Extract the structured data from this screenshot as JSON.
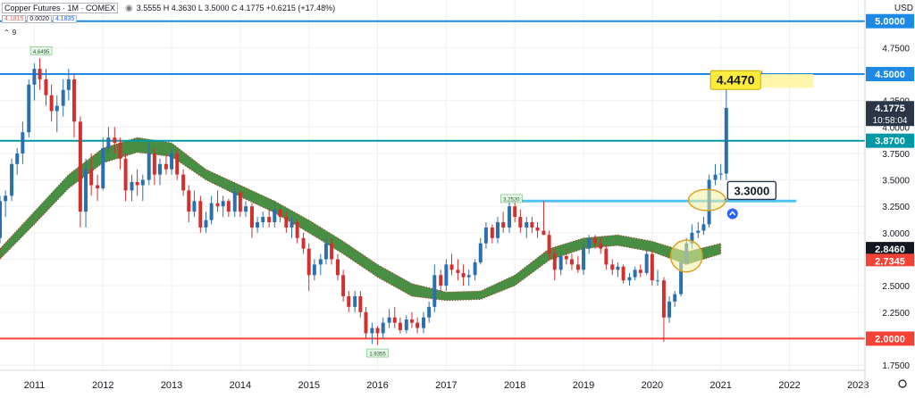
{
  "header": {
    "symbol": "Copper Futures · 1M · COMEX",
    "ohlc": "3.5555 H 4.3630 L 3.5000 C 4.1775 +0.6215 (+17.48%)",
    "bid": "4.1815",
    "spread": "0.0020",
    "ask": "4.1835",
    "indicator_toggle": "⌃",
    "indicator_value": "9"
  },
  "axis": {
    "currency": "USD",
    "y_ticks": [
      "1.7500",
      "2.0000",
      "2.2500",
      "2.5000",
      "2.7500",
      "3.0000",
      "3.2500",
      "3.5000",
      "3.7500",
      "4.0000",
      "4.2500",
      "4.5000",
      "4.7500",
      "5.0000"
    ],
    "x_ticks": [
      "2011",
      "2012",
      "2013",
      "2014",
      "2015",
      "2016",
      "2017",
      "2018",
      "2019",
      "2020",
      "2021",
      "2022",
      "2023"
    ]
  },
  "colors": {
    "up": "#2a6fb0",
    "down": "#d32f2f",
    "line_blue": "#1e88e5",
    "line_teal": "#0097a7",
    "line_red": "#f44336",
    "line_support": "#4fc3f7",
    "band_fill": "#3f8a3a",
    "band_edge": "#b71c1c",
    "ellipse_fill": "#f0f0a0",
    "ellipse_edge": "#e0a020",
    "target_box": "#fff59d",
    "badge_yellow": "#ffeb3b",
    "current_tag": "#2a3548",
    "black_tag": "#131722",
    "red_tag": "#f44336"
  },
  "chart_data": {
    "type": "candlestick",
    "title": "Copper Futures",
    "timeframe": "1M",
    "exchange": "COMEX",
    "ylim": [
      1.7,
      5.2
    ],
    "xlim": [
      2010.5,
      2023.1
    ],
    "horizontal_lines": [
      {
        "value": 5.0,
        "label": "5.0000",
        "color": "line_blue"
      },
      {
        "value": 4.5,
        "label": "4.5000",
        "color": "line_blue"
      },
      {
        "value": 3.87,
        "label": "3.8700",
        "color": "line_teal"
      },
      {
        "value": 2.0,
        "label": "2.0000",
        "color": "line_red"
      }
    ],
    "support_line": {
      "value": 3.3,
      "x_from": 2018.0,
      "x_to": 2022.1
    },
    "price_tags": [
      {
        "value": 4.1775,
        "label": "4.1775",
        "sublabel": "10:58:04",
        "color": "current_tag"
      },
      {
        "value": 2.846,
        "label": "2.8460",
        "color": "black_tag"
      },
      {
        "value": 2.7345,
        "label": "2.7345",
        "color": "red_tag"
      }
    ],
    "annotations": [
      {
        "x": 2011.1,
        "y": 4.6495,
        "text": "4.6495",
        "pos": "above"
      },
      {
        "x": 2017.95,
        "y": 3.252,
        "text": "3.2520",
        "pos": "above"
      },
      {
        "x": 2016.0,
        "y": 1.9355,
        "text": "1.9355",
        "pos": "below"
      }
    ],
    "callouts": [
      {
        "text": "4.4470",
        "x": 2020.85,
        "y": 4.447,
        "style": "yellow"
      },
      {
        "text": "3.3000",
        "x": 2021.1,
        "y": 3.4,
        "style": "white"
      }
    ],
    "target_zone": {
      "x_from": 2020.85,
      "x_to": 2022.35,
      "y_from": 4.37,
      "y_to": 4.5
    },
    "ellipses": [
      {
        "cx": 2020.8,
        "cy": 3.31,
        "rx": 0.27,
        "ry": 0.1
      },
      {
        "cx": 2020.5,
        "cy": 2.78,
        "rx": 0.23,
        "ry": 0.15
      }
    ],
    "band": {
      "name": "Moving-average ribbon",
      "x": [
        2010.5,
        2011.0,
        2011.5,
        2012.0,
        2012.5,
        2013.0,
        2013.5,
        2014.0,
        2014.5,
        2015.0,
        2015.5,
        2016.0,
        2016.5,
        2017.0,
        2017.5,
        2018.0,
        2018.5,
        2019.0,
        2019.5,
        2020.0,
        2020.5,
        2021.0
      ],
      "upper": [
        2.85,
        3.2,
        3.55,
        3.8,
        3.9,
        3.85,
        3.6,
        3.45,
        3.3,
        3.12,
        2.92,
        2.7,
        2.52,
        2.44,
        2.45,
        2.6,
        2.85,
        2.95,
        2.98,
        2.92,
        2.82,
        2.9
      ],
      "lower": [
        2.75,
        3.08,
        3.42,
        3.66,
        3.76,
        3.72,
        3.5,
        3.34,
        3.19,
        3.0,
        2.8,
        2.58,
        2.4,
        2.36,
        2.37,
        2.5,
        2.74,
        2.85,
        2.88,
        2.82,
        2.7,
        2.8
      ]
    },
    "candles": [
      {
        "t": 2010.5,
        "o": 2.95,
        "h": 3.35,
        "l": 2.9,
        "c": 3.3
      },
      {
        "t": 2010.58,
        "o": 3.3,
        "h": 3.4,
        "l": 3.15,
        "c": 3.35
      },
      {
        "t": 2010.67,
        "o": 3.35,
        "h": 3.7,
        "l": 3.3,
        "c": 3.65
      },
      {
        "t": 2010.75,
        "o": 3.65,
        "h": 3.8,
        "l": 3.55,
        "c": 3.75
      },
      {
        "t": 2010.83,
        "o": 3.75,
        "h": 4.05,
        "l": 3.65,
        "c": 3.95
      },
      {
        "t": 2010.92,
        "o": 3.95,
        "h": 4.45,
        "l": 3.9,
        "c": 4.4
      },
      {
        "t": 2011.0,
        "o": 4.4,
        "h": 4.6,
        "l": 4.25,
        "c": 4.55
      },
      {
        "t": 2011.08,
        "o": 4.55,
        "h": 4.65,
        "l": 4.35,
        "c": 4.45
      },
      {
        "t": 2011.17,
        "o": 4.45,
        "h": 4.55,
        "l": 4.2,
        "c": 4.3
      },
      {
        "t": 2011.25,
        "o": 4.3,
        "h": 4.4,
        "l": 4.05,
        "c": 4.15
      },
      {
        "t": 2011.33,
        "o": 4.15,
        "h": 4.3,
        "l": 3.95,
        "c": 4.2
      },
      {
        "t": 2011.42,
        "o": 4.2,
        "h": 4.45,
        "l": 4.1,
        "c": 4.35
      },
      {
        "t": 2011.5,
        "o": 4.35,
        "h": 4.55,
        "l": 4.25,
        "c": 4.45
      },
      {
        "t": 2011.58,
        "o": 4.45,
        "h": 4.5,
        "l": 3.9,
        "c": 4.05
      },
      {
        "t": 2011.67,
        "o": 4.05,
        "h": 4.1,
        "l": 3.05,
        "c": 3.2
      },
      {
        "t": 2011.75,
        "o": 3.2,
        "h": 3.7,
        "l": 3.05,
        "c": 3.6
      },
      {
        "t": 2011.83,
        "o": 3.6,
        "h": 3.75,
        "l": 3.35,
        "c": 3.45
      },
      {
        "t": 2011.92,
        "o": 3.45,
        "h": 3.55,
        "l": 3.3,
        "c": 3.42
      },
      {
        "t": 2012.0,
        "o": 3.42,
        "h": 3.9,
        "l": 3.4,
        "c": 3.8
      },
      {
        "t": 2012.08,
        "o": 3.8,
        "h": 4.0,
        "l": 3.75,
        "c": 3.9
      },
      {
        "t": 2012.17,
        "o": 3.9,
        "h": 4.0,
        "l": 3.75,
        "c": 3.85
      },
      {
        "t": 2012.25,
        "o": 3.85,
        "h": 3.9,
        "l": 3.6,
        "c": 3.7
      },
      {
        "t": 2012.33,
        "o": 3.7,
        "h": 3.75,
        "l": 3.3,
        "c": 3.4
      },
      {
        "t": 2012.42,
        "o": 3.4,
        "h": 3.55,
        "l": 3.3,
        "c": 3.48
      },
      {
        "t": 2012.5,
        "o": 3.48,
        "h": 3.6,
        "l": 3.35,
        "c": 3.45
      },
      {
        "t": 2012.58,
        "o": 3.45,
        "h": 3.55,
        "l": 3.3,
        "c": 3.5
      },
      {
        "t": 2012.67,
        "o": 3.5,
        "h": 3.85,
        "l": 3.45,
        "c": 3.75
      },
      {
        "t": 2012.75,
        "o": 3.75,
        "h": 3.8,
        "l": 3.45,
        "c": 3.55
      },
      {
        "t": 2012.83,
        "o": 3.55,
        "h": 3.7,
        "l": 3.45,
        "c": 3.65
      },
      {
        "t": 2012.92,
        "o": 3.65,
        "h": 3.75,
        "l": 3.55,
        "c": 3.6
      },
      {
        "t": 2013.0,
        "o": 3.6,
        "h": 3.8,
        "l": 3.55,
        "c": 3.75
      },
      {
        "t": 2013.08,
        "o": 3.75,
        "h": 3.78,
        "l": 3.5,
        "c": 3.55
      },
      {
        "t": 2013.17,
        "o": 3.55,
        "h": 3.6,
        "l": 3.35,
        "c": 3.4
      },
      {
        "t": 2013.25,
        "o": 3.4,
        "h": 3.45,
        "l": 3.1,
        "c": 3.2
      },
      {
        "t": 2013.33,
        "o": 3.2,
        "h": 3.4,
        "l": 3.15,
        "c": 3.3
      },
      {
        "t": 2013.42,
        "o": 3.3,
        "h": 3.35,
        "l": 3.0,
        "c": 3.05
      },
      {
        "t": 2013.5,
        "o": 3.05,
        "h": 3.2,
        "l": 3.0,
        "c": 3.12
      },
      {
        "t": 2013.58,
        "o": 3.12,
        "h": 3.35,
        "l": 3.08,
        "c": 3.28
      },
      {
        "t": 2013.67,
        "o": 3.28,
        "h": 3.4,
        "l": 3.2,
        "c": 3.25
      },
      {
        "t": 2013.75,
        "o": 3.25,
        "h": 3.35,
        "l": 3.15,
        "c": 3.3
      },
      {
        "t": 2013.83,
        "o": 3.3,
        "h": 3.32,
        "l": 3.15,
        "c": 3.2
      },
      {
        "t": 2013.92,
        "o": 3.2,
        "h": 3.42,
        "l": 3.15,
        "c": 3.38
      },
      {
        "t": 2014.0,
        "o": 3.38,
        "h": 3.4,
        "l": 3.15,
        "c": 3.2
      },
      {
        "t": 2014.08,
        "o": 3.2,
        "h": 3.3,
        "l": 3.15,
        "c": 3.25
      },
      {
        "t": 2014.17,
        "o": 3.25,
        "h": 3.28,
        "l": 2.95,
        "c": 3.05
      },
      {
        "t": 2014.25,
        "o": 3.05,
        "h": 3.15,
        "l": 3.0,
        "c": 3.1
      },
      {
        "t": 2014.33,
        "o": 3.1,
        "h": 3.2,
        "l": 3.05,
        "c": 3.15
      },
      {
        "t": 2014.42,
        "o": 3.15,
        "h": 3.22,
        "l": 3.05,
        "c": 3.1
      },
      {
        "t": 2014.5,
        "o": 3.1,
        "h": 3.3,
        "l": 3.05,
        "c": 3.22
      },
      {
        "t": 2014.58,
        "o": 3.22,
        "h": 3.25,
        "l": 3.1,
        "c": 3.15
      },
      {
        "t": 2014.67,
        "o": 3.15,
        "h": 3.2,
        "l": 3.0,
        "c": 3.05
      },
      {
        "t": 2014.75,
        "o": 3.05,
        "h": 3.15,
        "l": 2.95,
        "c": 3.1
      },
      {
        "t": 2014.83,
        "o": 3.1,
        "h": 3.12,
        "l": 2.9,
        "c": 2.95
      },
      {
        "t": 2014.92,
        "o": 2.95,
        "h": 3.0,
        "l": 2.8,
        "c": 2.85
      },
      {
        "t": 2015.0,
        "o": 2.85,
        "h": 2.9,
        "l": 2.45,
        "c": 2.6
      },
      {
        "t": 2015.08,
        "o": 2.6,
        "h": 2.75,
        "l": 2.55,
        "c": 2.7
      },
      {
        "t": 2015.17,
        "o": 2.7,
        "h": 2.8,
        "l": 2.6,
        "c": 2.75
      },
      {
        "t": 2015.25,
        "o": 2.75,
        "h": 2.95,
        "l": 2.7,
        "c": 2.9
      },
      {
        "t": 2015.33,
        "o": 2.9,
        "h": 2.95,
        "l": 2.7,
        "c": 2.75
      },
      {
        "t": 2015.42,
        "o": 2.75,
        "h": 2.8,
        "l": 2.55,
        "c": 2.6
      },
      {
        "t": 2015.5,
        "o": 2.6,
        "h": 2.65,
        "l": 2.35,
        "c": 2.4
      },
      {
        "t": 2015.58,
        "o": 2.4,
        "h": 2.45,
        "l": 2.25,
        "c": 2.3
      },
      {
        "t": 2015.67,
        "o": 2.3,
        "h": 2.45,
        "l": 2.25,
        "c": 2.4
      },
      {
        "t": 2015.75,
        "o": 2.4,
        "h": 2.45,
        "l": 2.2,
        "c": 2.25
      },
      {
        "t": 2015.83,
        "o": 2.25,
        "h": 2.3,
        "l": 2.0,
        "c": 2.05
      },
      {
        "t": 2015.92,
        "o": 2.05,
        "h": 2.15,
        "l": 1.95,
        "c": 2.1
      },
      {
        "t": 2016.0,
        "o": 2.1,
        "h": 2.12,
        "l": 1.94,
        "c": 2.05
      },
      {
        "t": 2016.08,
        "o": 2.05,
        "h": 2.2,
        "l": 2.0,
        "c": 2.15
      },
      {
        "t": 2016.17,
        "o": 2.15,
        "h": 2.28,
        "l": 2.1,
        "c": 2.2
      },
      {
        "t": 2016.25,
        "o": 2.2,
        "h": 2.3,
        "l": 2.1,
        "c": 2.15
      },
      {
        "t": 2016.33,
        "o": 2.15,
        "h": 2.2,
        "l": 2.05,
        "c": 2.08
      },
      {
        "t": 2016.42,
        "o": 2.08,
        "h": 2.22,
        "l": 2.05,
        "c": 2.18
      },
      {
        "t": 2016.5,
        "o": 2.18,
        "h": 2.25,
        "l": 2.1,
        "c": 2.15
      },
      {
        "t": 2016.58,
        "o": 2.15,
        "h": 2.2,
        "l": 2.05,
        "c": 2.1
      },
      {
        "t": 2016.67,
        "o": 2.1,
        "h": 2.25,
        "l": 2.05,
        "c": 2.2
      },
      {
        "t": 2016.75,
        "o": 2.2,
        "h": 2.35,
        "l": 2.15,
        "c": 2.3
      },
      {
        "t": 2016.83,
        "o": 2.3,
        "h": 2.7,
        "l": 2.25,
        "c": 2.6
      },
      {
        "t": 2016.92,
        "o": 2.6,
        "h": 2.65,
        "l": 2.45,
        "c": 2.5
      },
      {
        "t": 2017.0,
        "o": 2.5,
        "h": 2.75,
        "l": 2.45,
        "c": 2.7
      },
      {
        "t": 2017.08,
        "o": 2.7,
        "h": 2.8,
        "l": 2.6,
        "c": 2.65
      },
      {
        "t": 2017.17,
        "o": 2.65,
        "h": 2.75,
        "l": 2.55,
        "c": 2.62
      },
      {
        "t": 2017.25,
        "o": 2.62,
        "h": 2.7,
        "l": 2.5,
        "c": 2.58
      },
      {
        "t": 2017.33,
        "o": 2.58,
        "h": 2.65,
        "l": 2.5,
        "c": 2.6
      },
      {
        "t": 2017.42,
        "o": 2.6,
        "h": 2.75,
        "l": 2.55,
        "c": 2.72
      },
      {
        "t": 2017.5,
        "o": 2.72,
        "h": 2.95,
        "l": 2.7,
        "c": 2.9
      },
      {
        "t": 2017.58,
        "o": 2.9,
        "h": 3.1,
        "l": 2.85,
        "c": 3.05
      },
      {
        "t": 2017.67,
        "o": 3.05,
        "h": 3.08,
        "l": 2.9,
        "c": 2.95
      },
      {
        "t": 2017.75,
        "o": 2.95,
        "h": 3.15,
        "l": 2.9,
        "c": 3.1
      },
      {
        "t": 2017.83,
        "o": 3.1,
        "h": 3.2,
        "l": 3.0,
        "c": 3.05
      },
      {
        "t": 2017.92,
        "o": 3.05,
        "h": 3.3,
        "l": 3.0,
        "c": 3.25
      },
      {
        "t": 2018.0,
        "o": 3.25,
        "h": 3.29,
        "l": 3.1,
        "c": 3.15
      },
      {
        "t": 2018.08,
        "o": 3.15,
        "h": 3.22,
        "l": 3.0,
        "c": 3.05
      },
      {
        "t": 2018.17,
        "o": 3.05,
        "h": 3.15,
        "l": 2.95,
        "c": 3.1
      },
      {
        "t": 2018.25,
        "o": 3.1,
        "h": 3.15,
        "l": 3.0,
        "c": 3.05
      },
      {
        "t": 2018.33,
        "o": 3.05,
        "h": 3.1,
        "l": 2.95,
        "c": 3.02
      },
      {
        "t": 2018.42,
        "o": 3.02,
        "h": 3.3,
        "l": 2.98,
        "c": 2.98
      },
      {
        "t": 2018.5,
        "o": 2.98,
        "h": 3.02,
        "l": 2.75,
        "c": 2.8
      },
      {
        "t": 2018.58,
        "o": 2.8,
        "h": 2.85,
        "l": 2.55,
        "c": 2.65
      },
      {
        "t": 2018.67,
        "o": 2.65,
        "h": 2.82,
        "l": 2.6,
        "c": 2.78
      },
      {
        "t": 2018.75,
        "o": 2.78,
        "h": 2.85,
        "l": 2.7,
        "c": 2.75
      },
      {
        "t": 2018.83,
        "o": 2.75,
        "h": 2.8,
        "l": 2.65,
        "c": 2.7
      },
      {
        "t": 2018.92,
        "o": 2.7,
        "h": 2.78,
        "l": 2.62,
        "c": 2.65
      },
      {
        "t": 2019.0,
        "o": 2.65,
        "h": 2.9,
        "l": 2.6,
        "c": 2.85
      },
      {
        "t": 2019.08,
        "o": 2.85,
        "h": 2.98,
        "l": 2.8,
        "c": 2.95
      },
      {
        "t": 2019.17,
        "o": 2.95,
        "h": 2.98,
        "l": 2.85,
        "c": 2.9
      },
      {
        "t": 2019.25,
        "o": 2.9,
        "h": 2.95,
        "l": 2.8,
        "c": 2.85
      },
      {
        "t": 2019.33,
        "o": 2.85,
        "h": 2.88,
        "l": 2.65,
        "c": 2.7
      },
      {
        "t": 2019.42,
        "o": 2.7,
        "h": 2.75,
        "l": 2.6,
        "c": 2.65
      },
      {
        "t": 2019.5,
        "o": 2.65,
        "h": 2.72,
        "l": 2.58,
        "c": 2.68
      },
      {
        "t": 2019.58,
        "o": 2.68,
        "h": 2.7,
        "l": 2.52,
        "c": 2.55
      },
      {
        "t": 2019.67,
        "o": 2.55,
        "h": 2.62,
        "l": 2.5,
        "c": 2.58
      },
      {
        "t": 2019.75,
        "o": 2.58,
        "h": 2.68,
        "l": 2.55,
        "c": 2.65
      },
      {
        "t": 2019.83,
        "o": 2.65,
        "h": 2.7,
        "l": 2.58,
        "c": 2.62
      },
      {
        "t": 2019.92,
        "o": 2.62,
        "h": 2.85,
        "l": 2.6,
        "c": 2.8
      },
      {
        "t": 2020.0,
        "o": 2.8,
        "h": 2.85,
        "l": 2.5,
        "c": 2.55
      },
      {
        "t": 2020.08,
        "o": 2.55,
        "h": 2.65,
        "l": 2.5,
        "c": 2.55
      },
      {
        "t": 2020.17,
        "o": 2.55,
        "h": 2.58,
        "l": 1.97,
        "c": 2.2
      },
      {
        "t": 2020.25,
        "o": 2.2,
        "h": 2.4,
        "l": 2.15,
        "c": 2.35
      },
      {
        "t": 2020.33,
        "o": 2.35,
        "h": 2.45,
        "l": 2.3,
        "c": 2.42
      },
      {
        "t": 2020.42,
        "o": 2.42,
        "h": 2.75,
        "l": 2.4,
        "c": 2.72
      },
      {
        "t": 2020.5,
        "o": 2.72,
        "h": 2.95,
        "l": 2.7,
        "c": 2.9
      },
      {
        "t": 2020.58,
        "o": 2.9,
        "h": 3.08,
        "l": 2.85,
        "c": 3.0
      },
      {
        "t": 2020.67,
        "o": 3.0,
        "h": 3.1,
        "l": 2.95,
        "c": 3.02
      },
      {
        "t": 2020.75,
        "o": 3.02,
        "h": 3.15,
        "l": 2.98,
        "c": 3.08
      },
      {
        "t": 2020.83,
        "o": 3.08,
        "h": 3.55,
        "l": 3.05,
        "c": 3.5
      },
      {
        "t": 2020.92,
        "o": 3.5,
        "h": 3.65,
        "l": 3.45,
        "c": 3.55
      },
      {
        "t": 2021.0,
        "o": 3.55,
        "h": 3.65,
        "l": 3.5,
        "c": 3.56
      },
      {
        "t": 2021.08,
        "o": 3.56,
        "h": 4.36,
        "l": 3.5,
        "c": 4.18
      }
    ]
  }
}
